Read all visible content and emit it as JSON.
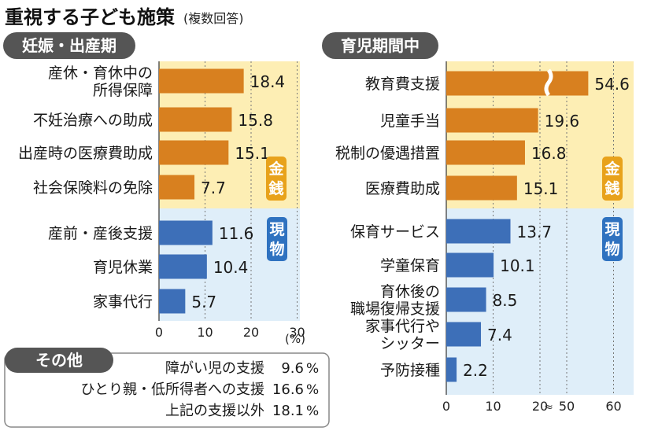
{
  "title": "重視する子ども施策",
  "subtitle": "(複数回答)",
  "unit_label": "(%)",
  "colors": {
    "money_bg": "#fdeeb4",
    "goods_bg": "#dfeef9",
    "money_bar": "#d8801f",
    "goods_bar": "#3d6fb8",
    "pill": "#555555",
    "tag_money": "#e8a21b",
    "tag_goods": "#2f72c0"
  },
  "tags": {
    "money": [
      "金",
      "銭"
    ],
    "goods": [
      "現",
      "物"
    ]
  },
  "chart_data": [
    {
      "type": "bar",
      "title": "妊娠・出産期",
      "orientation": "horizontal",
      "xlim": [
        0,
        30
      ],
      "x_ticks": [
        "0",
        "10",
        "20",
        "30"
      ],
      "categories": [
        [
          "産休・育休中の",
          "所得保障"
        ],
        [
          "不妊治療への助成"
        ],
        [
          "出産時の医療費助成"
        ],
        [
          "社会保険料の免除"
        ],
        [
          "産前・産後支援"
        ],
        [
          "育児休業"
        ],
        [
          "家事代行"
        ]
      ],
      "groups": [
        "money",
        "money",
        "money",
        "money",
        "goods",
        "goods",
        "goods"
      ],
      "values": [
        18.4,
        15.8,
        15.1,
        7.7,
        11.6,
        10.4,
        5.7
      ],
      "value_labels": [
        "18.4",
        "15.8",
        "15.1",
        "7.7",
        "11.6",
        "10.4",
        "5.7"
      ],
      "grid": true
    },
    {
      "type": "bar",
      "title": "育児期間中",
      "orientation": "horizontal",
      "xlim": [
        0,
        60
      ],
      "axis_break": [
        20,
        50
      ],
      "x_ticks": [
        "0",
        "10",
        "20",
        "50",
        "60"
      ],
      "categories": [
        [
          "教育費支援"
        ],
        [
          "児童手当"
        ],
        [
          "税制の優遇措置"
        ],
        [
          "医療費助成"
        ],
        [
          "保育サービス"
        ],
        [
          "学童保育"
        ],
        [
          "育休後の",
          "職場復帰支援"
        ],
        [
          "家事代行や",
          "シッター"
        ],
        [
          "予防接種"
        ]
      ],
      "groups": [
        "money",
        "money",
        "money",
        "money",
        "goods",
        "goods",
        "goods",
        "goods",
        "goods"
      ],
      "values": [
        54.6,
        19.6,
        16.8,
        15.1,
        13.7,
        10.1,
        8.5,
        7.4,
        2.2
      ],
      "value_labels": [
        "54.6",
        "19.6",
        "16.8",
        "15.1",
        "13.7",
        "10.1",
        "8.5",
        "7.4",
        "2.2"
      ],
      "grid": true
    },
    {
      "type": "table",
      "title": "その他",
      "rows": [
        {
          "label": "障がい児の支援",
          "value": 9.6,
          "value_label": "9.6"
        },
        {
          "label": "ひとり親・低所得者への支援",
          "value": 16.6,
          "value_label": "16.6"
        },
        {
          "label": "上記の支援以外",
          "value": 18.1,
          "value_label": "18.1"
        }
      ],
      "unit": "%"
    }
  ]
}
